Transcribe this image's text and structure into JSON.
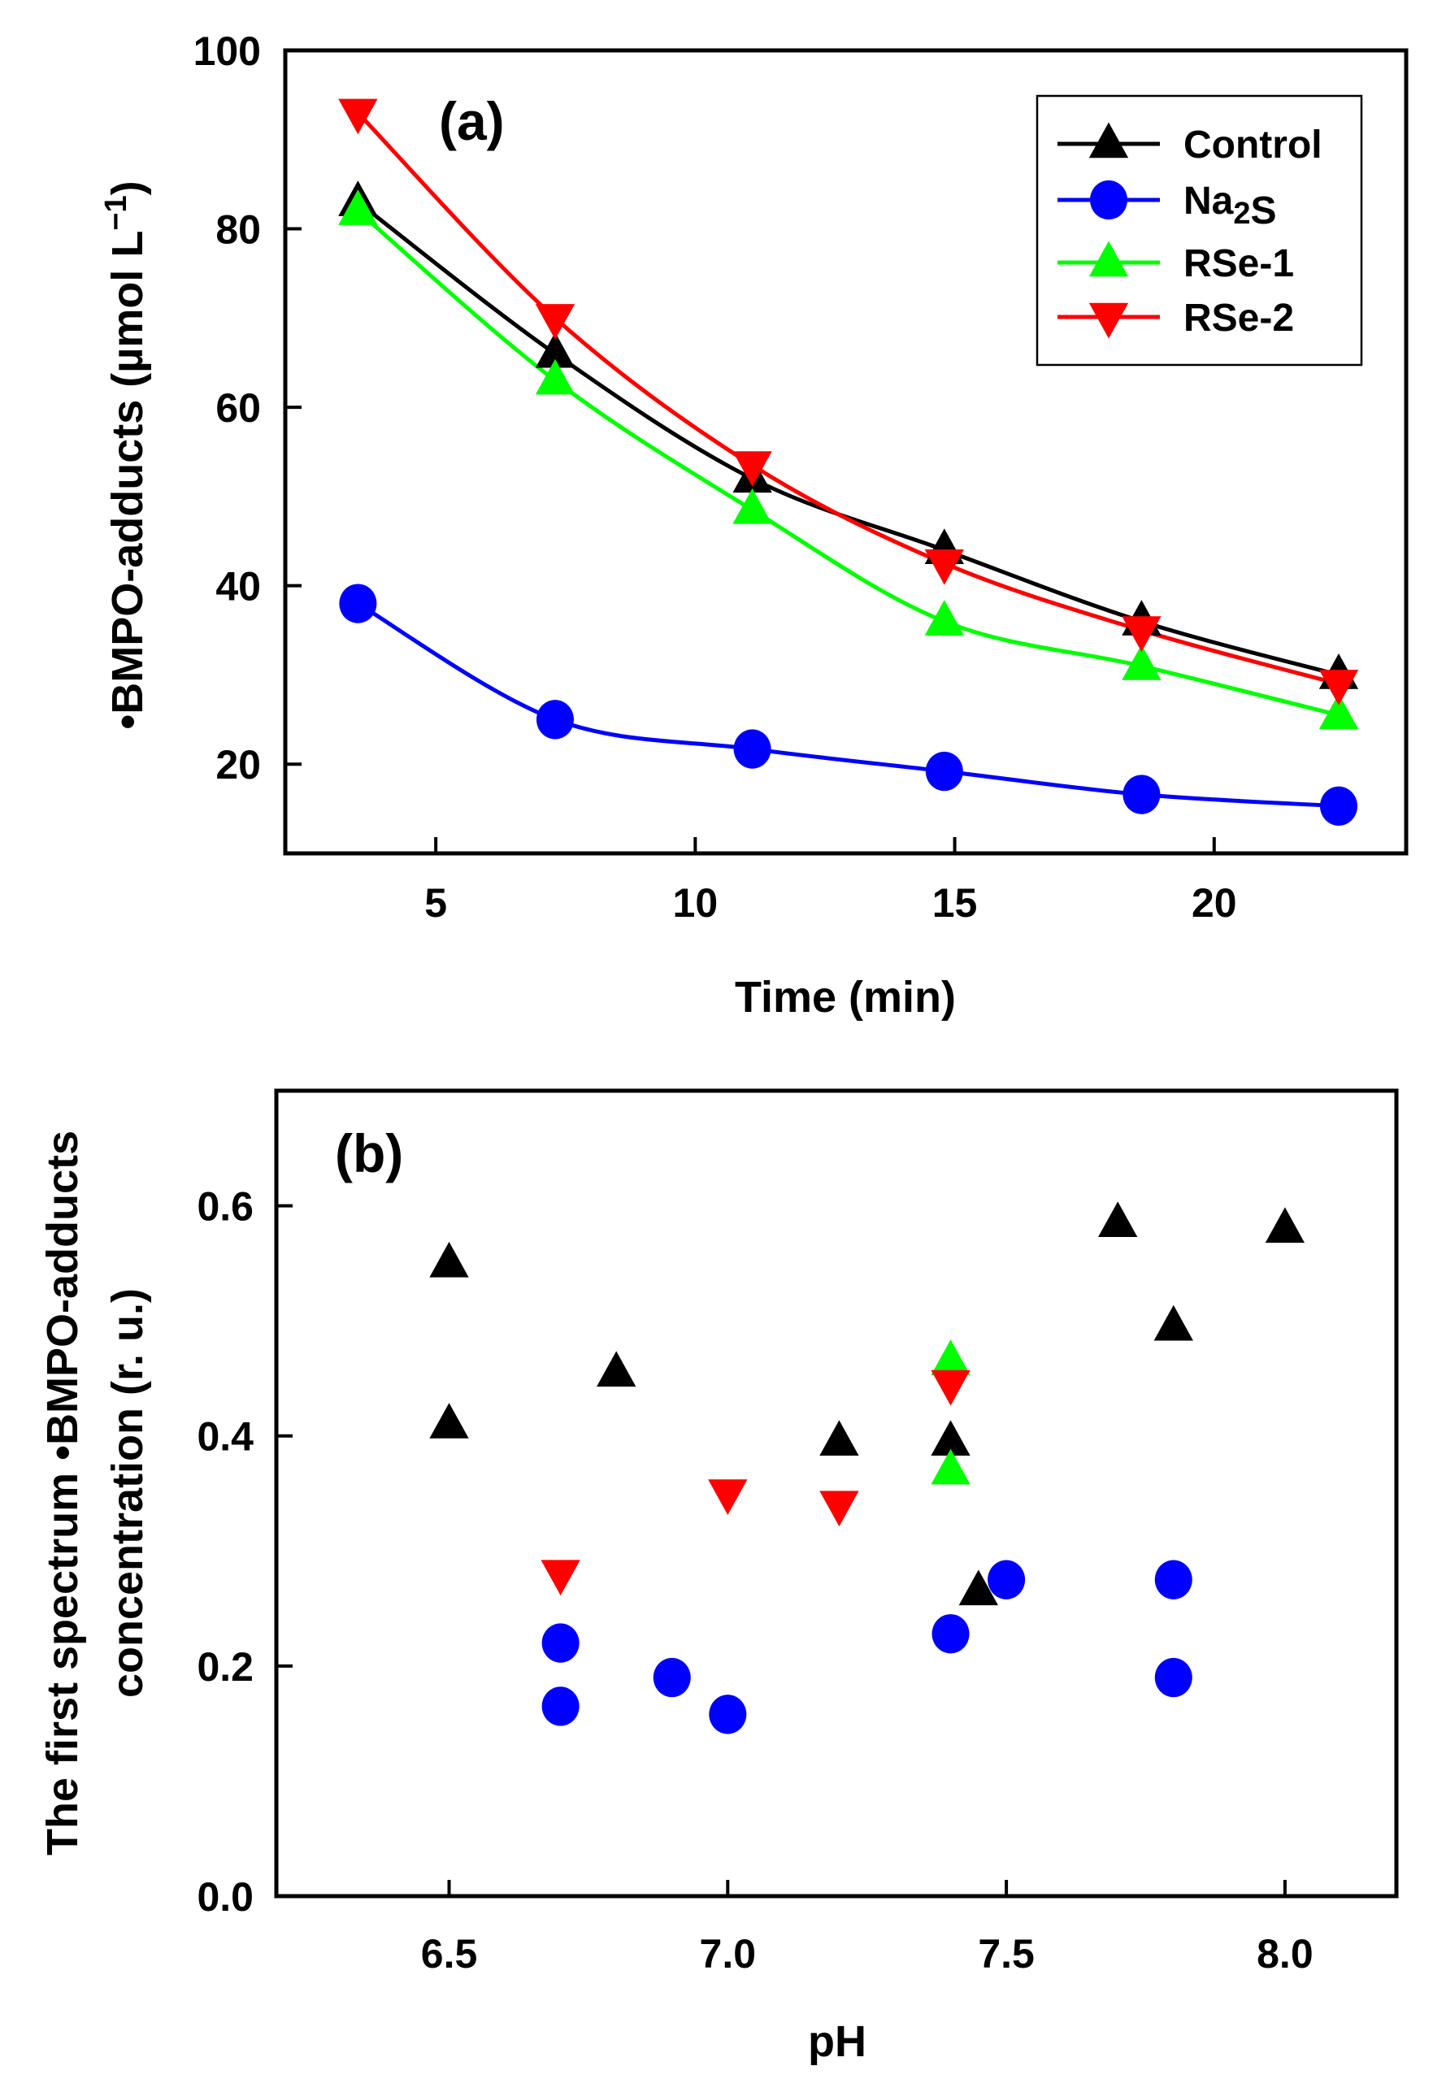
{
  "chart_data": [
    {
      "type": "line",
      "panel_label": "(a)",
      "xlabel": "Time (min)",
      "ylabel_main": "•BMPO-adducts (µmol L",
      "ylabel_sup": "−1",
      "ylabel_end": ")",
      "xlim": [
        2.1,
        23.7
      ],
      "ylim": [
        10,
        100
      ],
      "xticks": [
        5,
        10,
        15,
        20
      ],
      "yticks": [
        20,
        40,
        60,
        80,
        100
      ],
      "grid": false,
      "legend_position": "top-right",
      "x": [
        3.5,
        7.3,
        11.1,
        14.8,
        18.6,
        22.4
      ],
      "series": [
        {
          "name": "Control",
          "color": "#000000",
          "marker": "triangle-up",
          "values": [
            83,
            66,
            52,
            44,
            36,
            30
          ]
        },
        {
          "name": "Na2S",
          "color": "#0000ff",
          "marker": "circle",
          "values": [
            38,
            25,
            21.7,
            19.2,
            16.6,
            15.3
          ]
        },
        {
          "name": "RSe-1",
          "color": "#00ff00",
          "marker": "triangle-up",
          "values": [
            82,
            63,
            48.5,
            36,
            31,
            25.5
          ]
        },
        {
          "name": "RSe-2",
          "color": "#ff0000",
          "marker": "triangle-down",
          "values": [
            93,
            70,
            53.5,
            42.5,
            35,
            29
          ]
        }
      ]
    },
    {
      "type": "scatter",
      "panel_label": "(b)",
      "xlabel": "pH",
      "ylabel_line1": "The first spectrum •BMPO-adducts",
      "ylabel_line2": "concentration (r. u.)",
      "xlim": [
        6.19,
        8.2
      ],
      "ylim": [
        0,
        0.7
      ],
      "xticks": [
        "6.5",
        "7.0",
        "7.5",
        "8.0"
      ],
      "yticks": [
        "0.0",
        "0.2",
        "0.4",
        "0.6"
      ],
      "grid": false,
      "series": [
        {
          "name": "Control",
          "color": "#000000",
          "marker": "triangle-up",
          "points": [
            [
              6.5,
              0.55
            ],
            [
              6.5,
              0.41
            ],
            [
              6.8,
              0.455
            ],
            [
              7.2,
              0.395
            ],
            [
              7.4,
              0.395
            ],
            [
              7.45,
              0.265
            ],
            [
              7.7,
              0.585
            ],
            [
              7.8,
              0.495
            ],
            [
              8.0,
              0.58
            ]
          ]
        },
        {
          "name": "Na2S",
          "color": "#0000ff",
          "marker": "circle",
          "points": [
            [
              6.7,
              0.22
            ],
            [
              6.7,
              0.165
            ],
            [
              6.9,
              0.19
            ],
            [
              7.0,
              0.158
            ],
            [
              7.4,
              0.228
            ],
            [
              7.5,
              0.275
            ],
            [
              7.8,
              0.275
            ],
            [
              7.8,
              0.19
            ]
          ]
        },
        {
          "name": "RSe-1",
          "color": "#00ff00",
          "marker": "triangle-up",
          "points": [
            [
              7.4,
              0.465
            ],
            [
              7.4,
              0.37
            ]
          ]
        },
        {
          "name": "RSe-2",
          "color": "#ff0000",
          "marker": "triangle-down",
          "points": [
            [
              6.7,
              0.28
            ],
            [
              7.0,
              0.35
            ],
            [
              7.2,
              0.34
            ],
            [
              7.4,
              0.445
            ]
          ]
        }
      ]
    }
  ]
}
